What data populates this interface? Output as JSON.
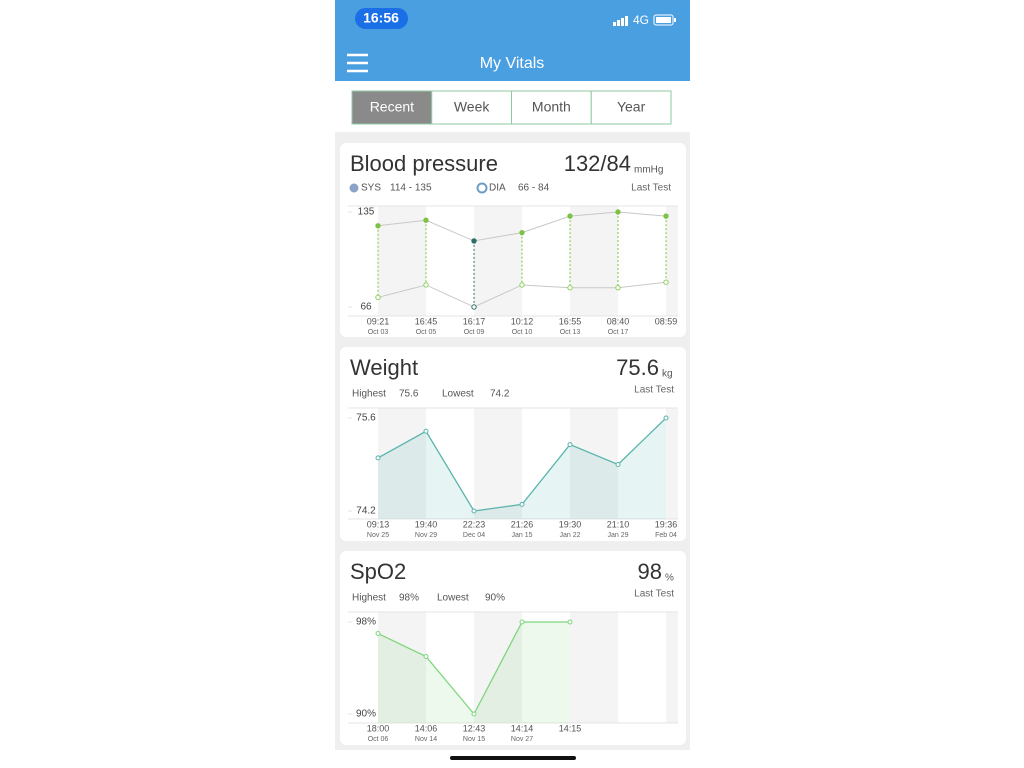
{
  "status_bar": {
    "time": "16:56",
    "network": "4G"
  },
  "header": {
    "title": "My Vitals"
  },
  "tabs": [
    "Recent",
    "Week",
    "Month",
    "Year"
  ],
  "active_tab": "Recent",
  "cards": [
    {
      "title": "Blood pressure",
      "reading": "132/84",
      "unit": "mmHg",
      "note": "Last Test",
      "legend": [
        {
          "name": "SYS",
          "range": "114 - 135",
          "color": "#8ba3c7",
          "hollow": false
        },
        {
          "name": "DIA",
          "range": "66 - 84",
          "color": "#6a9ec9",
          "hollow": true
        }
      ],
      "chart": {
        "type": "range-line",
        "x": [
          "09:21",
          "16:45",
          "16:17",
          "10:12",
          "16:55",
          "08:40",
          "08:59"
        ],
        "dates": [
          "Oct 03",
          "Oct 05",
          "Oct 09",
          "Oct 10",
          "Oct 13",
          "Oct 17",
          null
        ],
        "ylim": [
          66,
          135
        ],
        "yticks": [
          135,
          66
        ],
        "series": [
          {
            "name": "SYS",
            "color": "#7cc243",
            "values": [
              125,
              129,
              114,
              120,
              132,
              135,
              132
            ]
          },
          {
            "name": "DIA",
            "color": "#8fcf5e",
            "values": [
              73,
              82,
              66,
              82,
              80,
              80,
              84
            ]
          }
        ]
      }
    },
    {
      "title": "Weight",
      "reading": "75.6",
      "unit": "kg",
      "note": "Last Test",
      "stats": [
        {
          "label": "Highest",
          "value": 75.6
        },
        {
          "label": "Lowest",
          "value": 74.2
        }
      ],
      "chart": {
        "type": "area",
        "x": [
          "09:13",
          "19:40",
          "22:23",
          "21:26",
          "19:30",
          "21:10",
          "19:36"
        ],
        "dates": [
          "Nov 25",
          "Nov 29",
          "Dec 04",
          "Jan 15",
          "Jan 22",
          "Jan 29",
          "Feb 04"
        ],
        "ylim": [
          74.2,
          75.6
        ],
        "yticks": [
          75.6,
          74.2
        ],
        "series": [
          {
            "name": "Weight",
            "color": "#5ab5ad",
            "values": [
              75.0,
              75.4,
              74.2,
              74.3,
              75.2,
              74.9,
              75.6
            ]
          }
        ]
      }
    },
    {
      "title": "SpO2",
      "reading": "98",
      "unit": "%",
      "note": "Last Test",
      "stats": [
        {
          "label": "Highest",
          "value": "98%"
        },
        {
          "label": "Lowest",
          "value": "90%"
        }
      ],
      "chart": {
        "type": "area",
        "x": [
          "18:00",
          "14:06",
          "12:43",
          "14:14",
          "14:15"
        ],
        "dates": [
          "Oct 06",
          "Nov 14",
          "Nov 15",
          "Nov 27",
          null
        ],
        "ylim": [
          90,
          98
        ],
        "yticks": [
          {
            "value": 98,
            "label": "98%"
          },
          {
            "value": 90,
            "label": "90%"
          }
        ],
        "series": [
          {
            "name": "SpO2",
            "color": "#7ed67e",
            "values": [
              97,
              95,
              90,
              98,
              98
            ]
          }
        ]
      }
    }
  ]
}
